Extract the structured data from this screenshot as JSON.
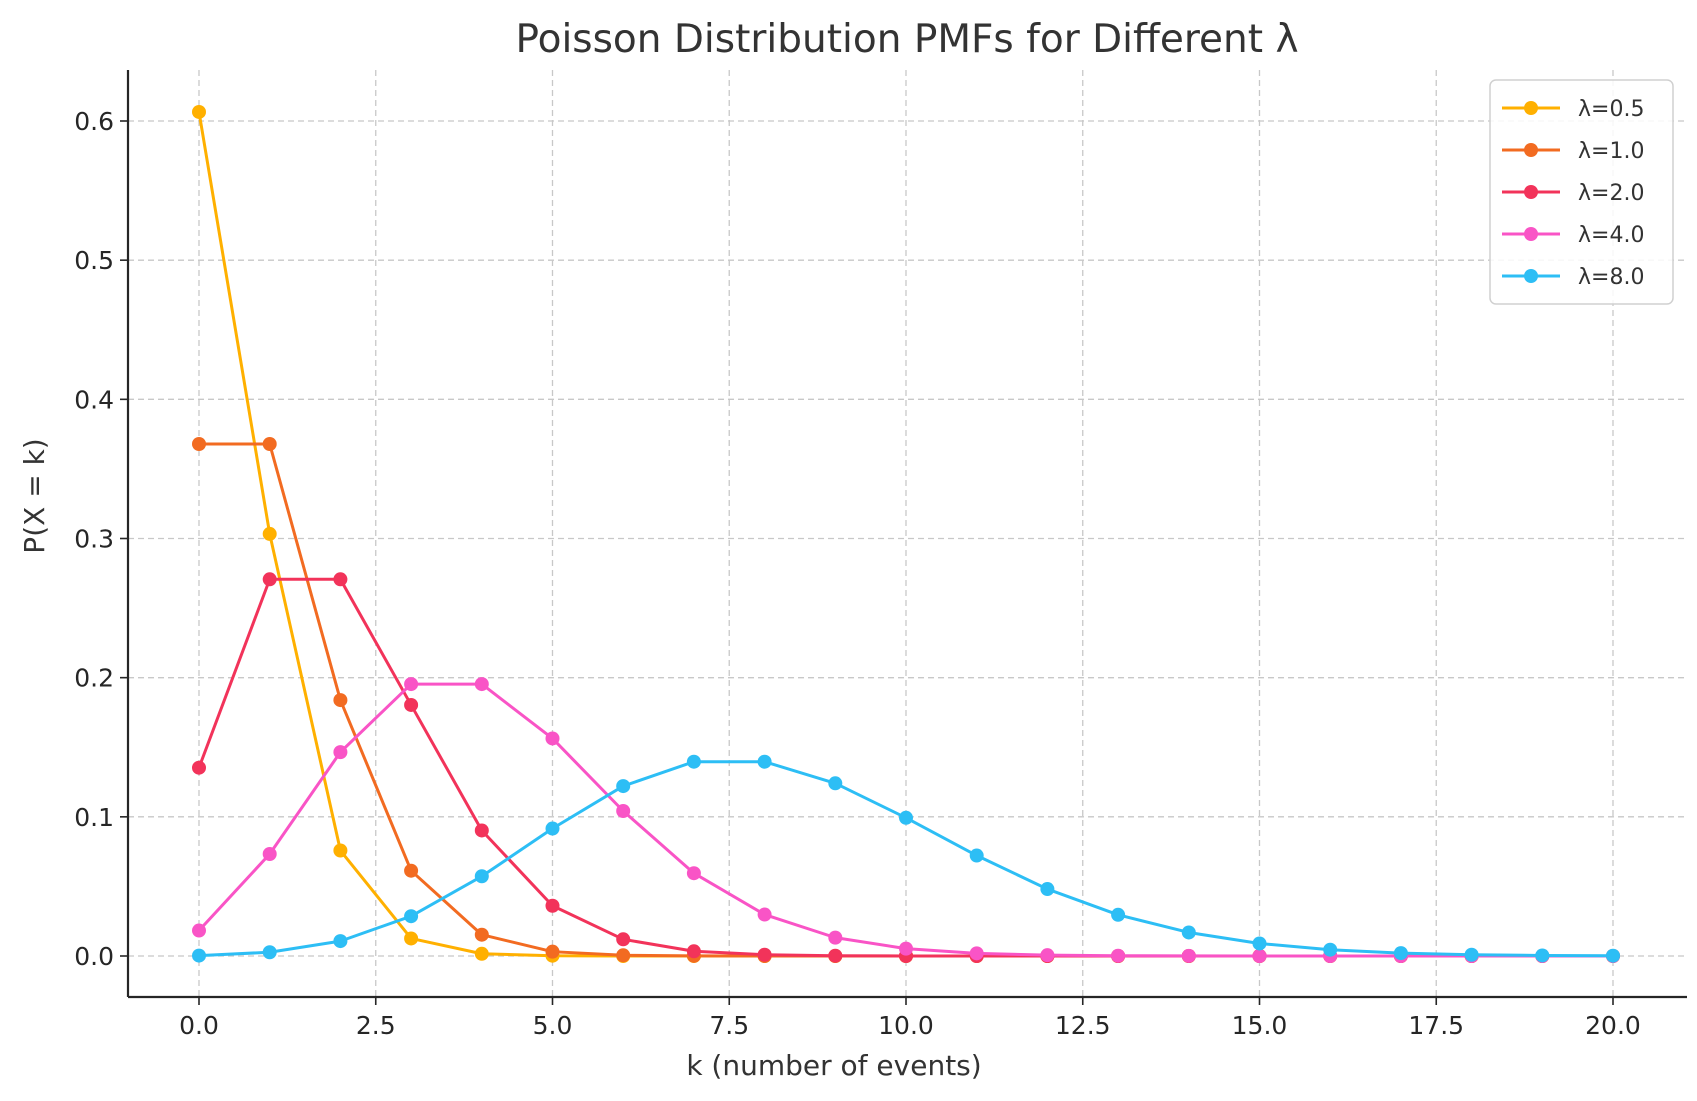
{
  "chart_data": {
    "type": "line",
    "title": "Poisson Distribution PMFs for Different λ",
    "xlabel": "k (number of events)",
    "ylabel": "P(X = k)",
    "xlim": [
      -1.0,
      21.0
    ],
    "ylim": [
      -0.03,
      0.635
    ],
    "grid": true,
    "legend_position": "top-right",
    "x_ticks": [
      0.0,
      2.5,
      5.0,
      7.5,
      10.0,
      12.5,
      15.0,
      17.5,
      20.0
    ],
    "x_tick_labels": [
      "0.0",
      "2.5",
      "5.0",
      "7.5",
      "10.0",
      "12.5",
      "15.0",
      "17.5",
      "20.0"
    ],
    "y_ticks": [
      0.0,
      0.1,
      0.2,
      0.3,
      0.4,
      0.5,
      0.6
    ],
    "y_tick_labels": [
      "0.0",
      "0.1",
      "0.2",
      "0.3",
      "0.4",
      "0.5",
      "0.6"
    ],
    "x": [
      0,
      1,
      2,
      3,
      4,
      5,
      6,
      7,
      8,
      9,
      10,
      11,
      12,
      13,
      14,
      15,
      16,
      17,
      18,
      19,
      20
    ],
    "series": [
      {
        "name": "λ=0.5",
        "color": "#FFB000",
        "values": [
          0.6065,
          0.3033,
          0.0758,
          0.0126,
          0.0016,
          0.0002,
          0.0,
          0.0,
          0.0,
          0.0,
          0.0,
          0.0,
          0.0,
          0.0,
          0.0,
          0.0,
          0.0,
          0.0,
          0.0,
          0.0,
          0.0
        ]
      },
      {
        "name": "λ=1.0",
        "color": "#F26B21",
        "values": [
          0.3679,
          0.3679,
          0.1839,
          0.0613,
          0.0153,
          0.0031,
          0.0005,
          0.0001,
          0.0,
          0.0,
          0.0,
          0.0,
          0.0,
          0.0,
          0.0,
          0.0,
          0.0,
          0.0,
          0.0,
          0.0,
          0.0
        ]
      },
      {
        "name": "λ=2.0",
        "color": "#F2335A",
        "values": [
          0.1353,
          0.2707,
          0.2707,
          0.1804,
          0.0902,
          0.0361,
          0.012,
          0.0034,
          0.0009,
          0.0002,
          0.0,
          0.0,
          0.0,
          0.0,
          0.0,
          0.0,
          0.0,
          0.0,
          0.0,
          0.0,
          0.0
        ]
      },
      {
        "name": "λ=4.0",
        "color": "#F954C6",
        "values": [
          0.0183,
          0.0733,
          0.1465,
          0.1954,
          0.1954,
          0.1563,
          0.1042,
          0.0595,
          0.0298,
          0.0132,
          0.0053,
          0.0019,
          0.0006,
          0.0002,
          0.0001,
          0.0,
          0.0,
          0.0,
          0.0,
          0.0,
          0.0
        ]
      },
      {
        "name": "λ=8.0",
        "color": "#2DBEF5",
        "values": [
          0.0003,
          0.0027,
          0.0107,
          0.0286,
          0.0573,
          0.0916,
          0.1221,
          0.1396,
          0.1396,
          0.1241,
          0.0993,
          0.0722,
          0.0481,
          0.0296,
          0.0169,
          0.009,
          0.0045,
          0.0021,
          0.0009,
          0.0004,
          0.0002
        ]
      }
    ]
  }
}
